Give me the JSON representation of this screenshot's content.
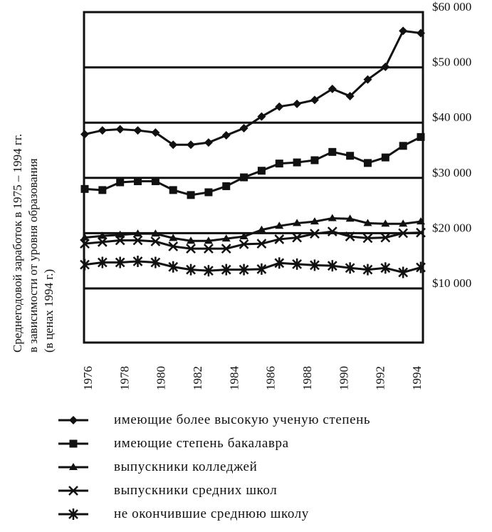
{
  "chart_data": {
    "type": "line",
    "title": "",
    "ylabel": "Среднегодовой заработок в 1975 – 1994 гг. в зависимости от уровня образования (в ценах 1994 г.)",
    "ylabel_lines": [
      "Среднегодовой заработок в 1975 – 1994 гг.",
      "в зависимости от уровня образования",
      "(в ценах 1994 г.)"
    ],
    "xlabel": "",
    "x": [
      1975,
      1976,
      1977,
      1978,
      1979,
      1980,
      1981,
      1982,
      1983,
      1984,
      1985,
      1986,
      1987,
      1988,
      1989,
      1990,
      1991,
      1992,
      1993,
      1994
    ],
    "x_tick_labels": [
      "1976",
      "1978",
      "1980",
      "1982",
      "1984",
      "1986",
      "1988",
      "1990",
      "1992",
      "1994"
    ],
    "y_tick_labels": [
      "$10 000",
      "$20 000",
      "$30 000",
      "$40 000",
      "$50 000",
      "$60 000"
    ],
    "y_ticks": [
      10000,
      20000,
      30000,
      40000,
      50000,
      60000
    ],
    "ylim": [
      0,
      60000
    ],
    "grid": "horizontal",
    "y_axis_position": "right",
    "legend_position": "bottom",
    "series": [
      {
        "name": "имеющие более высокую ученую степень",
        "marker": "diamond",
        "values": [
          37900,
          38600,
          38800,
          38600,
          38200,
          36000,
          36000,
          36400,
          37700,
          39000,
          41100,
          42900,
          43400,
          44100,
          46100,
          44800,
          47800,
          50100,
          56600,
          56200
        ]
      },
      {
        "name": "имеющие степень бакалавра",
        "marker": "square",
        "values": [
          28000,
          27800,
          29200,
          29400,
          29400,
          27800,
          26900,
          27400,
          28500,
          30100,
          31300,
          32600,
          32800,
          33200,
          34700,
          34000,
          32700,
          33700,
          35800,
          37400
        ]
      },
      {
        "name": "выпускники колледжей",
        "marker": "triangle",
        "values": [
          19200,
          19500,
          19700,
          19900,
          19900,
          19100,
          18600,
          18600,
          19000,
          19400,
          20600,
          21300,
          21800,
          22100,
          22700,
          22600,
          21800,
          21700,
          21700,
          22100
        ]
      },
      {
        "name": "выпускники средних школ",
        "marker": "x",
        "values": [
          18100,
          18400,
          18700,
          18700,
          18500,
          17600,
          17200,
          17200,
          17200,
          18000,
          18100,
          18900,
          19200,
          19900,
          20300,
          19400,
          19100,
          19200,
          20000,
          20100
        ]
      },
      {
        "name": "не окончившие среднюю школу",
        "marker": "asterisk",
        "values": [
          14300,
          14700,
          14700,
          14900,
          14700,
          13900,
          13400,
          13200,
          13400,
          13400,
          13500,
          14600,
          14400,
          14200,
          14100,
          13700,
          13400,
          13700,
          12900,
          13800
        ]
      }
    ]
  },
  "legend": {
    "items": [
      {
        "label": "имеющие более высокую ученую степень",
        "marker": "diamond"
      },
      {
        "label": "имеющие степень бакалавра",
        "marker": "square"
      },
      {
        "label": "выпускники колледжей",
        "marker": "triangle"
      },
      {
        "label": "выпускники средних школ",
        "marker": "x"
      },
      {
        "label": "не окончившие среднюю школу",
        "marker": "asterisk"
      }
    ]
  },
  "colors": {
    "ink": "#111111",
    "background": "#ffffff"
  }
}
